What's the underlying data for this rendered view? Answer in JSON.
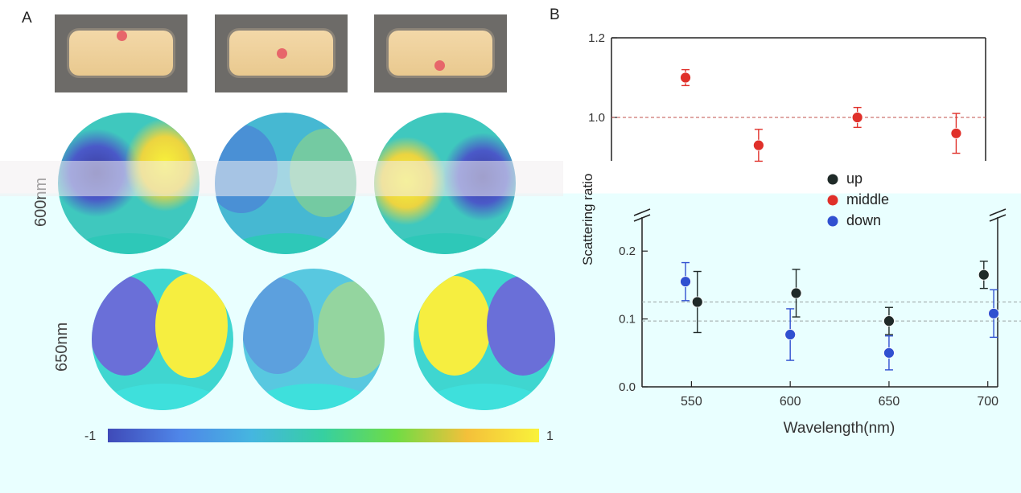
{
  "panels": {
    "a": "A",
    "b": "B"
  },
  "row_labels": {
    "r600": "600nm",
    "r650": "650nm"
  },
  "colorbar": {
    "min_label": "-1",
    "max_label": "1",
    "colors": [
      "#3f4ab8",
      "#4f86e8",
      "#45b6e0",
      "#36d0a0",
      "#6fdc45",
      "#f4c03a",
      "#f9f23a"
    ]
  },
  "photo_colors": {
    "background": "#6d6b68",
    "dot": "#e7666a"
  },
  "chart_data": {
    "type": "scatter",
    "xlabel": "Wavelength(nm)",
    "ylabel": "Scattering ratio",
    "xticks": [
      550,
      600,
      650,
      700
    ],
    "xlim": [
      525,
      705
    ],
    "y_segments": [
      {
        "ylim": [
          0.0,
          0.25
        ],
        "yticks": [
          "0.0",
          "0.1",
          "0.2"
        ]
      },
      {
        "ylim": [
          0.8,
          1.2
        ],
        "yticks": [
          "1.0",
          "1.2"
        ]
      }
    ],
    "reference_lines": [
      {
        "y": 1.0,
        "color": "#c0504d"
      },
      {
        "y": 0.125,
        "color": "#9aa2a2"
      },
      {
        "y": 0.097,
        "color": "#9aa2a2"
      }
    ],
    "series": [
      {
        "name": "up",
        "color": "#1f2a28",
        "x": [
          553,
          603,
          650,
          698
        ],
        "y": [
          0.125,
          0.138,
          0.097,
          0.165
        ],
        "err": [
          0.045,
          0.035,
          0.02,
          0.02
        ]
      },
      {
        "name": "middle",
        "color": "#e0302a",
        "x": [
          547,
          584,
          634,
          684
        ],
        "y": [
          1.1,
          0.93,
          1.0,
          0.96
        ],
        "err": [
          0.02,
          0.04,
          0.025,
          0.05
        ]
      },
      {
        "name": "down",
        "color": "#3050d0",
        "x": [
          547,
          600,
          650,
          703
        ],
        "y": [
          0.155,
          0.077,
          0.05,
          0.108
        ],
        "err": [
          0.028,
          0.038,
          0.025,
          0.035
        ]
      }
    ]
  }
}
